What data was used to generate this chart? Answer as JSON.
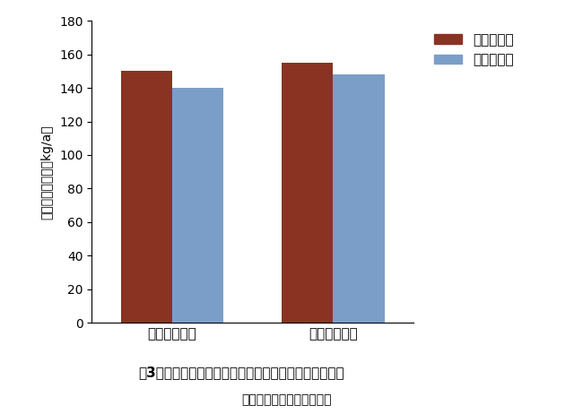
{
  "groups": [
    "多肥移植栄培",
    "多肥直播栄培"
  ],
  "series": [
    "べこげんき",
    "べこごのみ"
  ],
  "values": [
    [
      150,
      140
    ],
    [
      155,
      148
    ]
  ],
  "bar_colors": [
    "#8B3323",
    "#7B9EC9"
  ],
  "ylabel": "黄熟期全举物重（kg/a）",
  "ylim": [
    0,
    180
  ],
  "yticks": [
    0,
    20,
    40,
    60,
    80,
    100,
    120,
    140,
    160,
    180
  ],
  "title_line1": "図3　黄熟期における「べこげんき」の地上部举物収量",
  "title_line2": "（栄培地　秋田県大仙市）",
  "background_color": "#FFFFFF",
  "bar_width": 0.32,
  "legend_pos": "right"
}
